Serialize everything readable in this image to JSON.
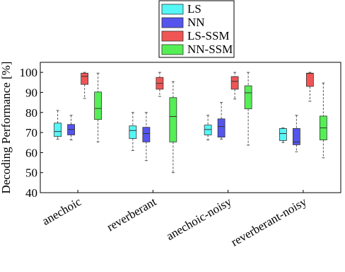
{
  "chart_data": {
    "type": "box",
    "ylabel": "Decoding Performance [%]",
    "categories": [
      "anechoic",
      "reverberant",
      "anechoic-noisy",
      "reverberant-noisy"
    ],
    "ylim": [
      40,
      105
    ],
    "yticks": [
      40,
      50,
      60,
      70,
      80,
      90,
      100
    ],
    "legend": "top",
    "series": [
      {
        "name": "LS",
        "color": "#55f6f6",
        "min": [
          66.7,
          61,
          66.3,
          65
        ],
        "q1": [
          68,
          67,
          68.8,
          66
        ],
        "median": [
          70.5,
          71,
          71.5,
          69.5
        ],
        "q3": [
          74.7,
          73.3,
          73.7,
          72
        ],
        "max": [
          81,
          80,
          78.6,
          72.3
        ]
      },
      {
        "name": "NN",
        "color": "#5555ee",
        "min": [
          66.3,
          56,
          66.7,
          60.4
        ],
        "q1": [
          68.8,
          65.3,
          67.7,
          63.9
        ],
        "median": [
          71.5,
          69.5,
          73,
          65.3
        ],
        "q3": [
          74,
          72.6,
          76.8,
          72
        ],
        "max": [
          78.6,
          80,
          85,
          78.6
        ]
      },
      {
        "name": "LS-SSM",
        "color": "#f05555",
        "min": [
          87,
          88,
          86.7,
          85.6
        ],
        "q1": [
          94,
          91.6,
          91.6,
          93
        ],
        "median": [
          98,
          94.5,
          95.5,
          99.5
        ],
        "q3": [
          99.6,
          97.5,
          97.9,
          99.6
        ],
        "max": [
          100,
          100,
          100,
          100
        ]
      },
      {
        "name": "NN-SSM",
        "color": "#55ee55",
        "min": [
          65.3,
          50,
          63.7,
          57.4
        ],
        "q1": [
          76.5,
          65.3,
          81.8,
          66.3
        ],
        "median": [
          82,
          78,
          89.8,
          72.3
        ],
        "q3": [
          90.2,
          87.4,
          93.3,
          78.2
        ],
        "max": [
          99.6,
          95.4,
          100,
          94.7
        ]
      }
    ]
  }
}
